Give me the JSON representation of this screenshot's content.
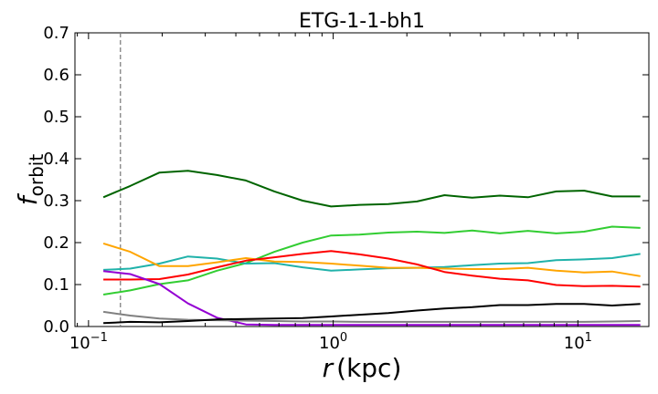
{
  "chart_data": {
    "type": "line",
    "title": "ETG-1-1-bh1",
    "xlabel": {
      "var": "r",
      "unit": "(kpc)"
    },
    "ylabel": {
      "var": "f",
      "sub": "orbit"
    },
    "xscale": "log",
    "xlim": [
      0.088,
      19.5
    ],
    "ylim": [
      0.0,
      0.7
    ],
    "yticks": [
      "0.0",
      "0.1",
      "0.2",
      "0.3",
      "0.4",
      "0.5",
      "0.6",
      "0.7"
    ],
    "xticks": [
      {
        "value": 0.1,
        "base": "10",
        "exp": "−1"
      },
      {
        "value": 1,
        "base": "10",
        "exp": "0"
      },
      {
        "value": 10,
        "base": "10",
        "exp": "1"
      }
    ],
    "grid": false,
    "vline": {
      "x": 0.135,
      "color": "#808080",
      "style": "dashed"
    },
    "x": [
      0.115,
      0.148,
      0.195,
      0.255,
      0.335,
      0.44,
      0.575,
      0.75,
      0.98,
      1.28,
      1.68,
      2.2,
      2.85,
      3.7,
      4.8,
      6.25,
      8.15,
      10.6,
      13.8,
      18.0
    ],
    "series": [
      {
        "color": "#006400",
        "values": [
          0.308,
          0.335,
          0.367,
          0.371,
          0.361,
          0.348,
          0.322,
          0.3,
          0.286,
          0.29,
          0.292,
          0.298,
          0.313,
          0.307,
          0.312,
          0.308,
          0.322,
          0.324,
          0.31,
          0.31
        ]
      },
      {
        "color": "#32cd32",
        "values": [
          0.076,
          0.086,
          0.101,
          0.11,
          0.133,
          0.151,
          0.178,
          0.2,
          0.217,
          0.219,
          0.224,
          0.226,
          0.223,
          0.229,
          0.222,
          0.228,
          0.222,
          0.226,
          0.238,
          0.235
        ]
      },
      {
        "color": "#20b2aa",
        "values": [
          0.135,
          0.138,
          0.15,
          0.167,
          0.162,
          0.15,
          0.151,
          0.141,
          0.133,
          0.136,
          0.139,
          0.14,
          0.142,
          0.146,
          0.15,
          0.151,
          0.158,
          0.16,
          0.163,
          0.173
        ]
      },
      {
        "color": "#ffa500",
        "values": [
          0.198,
          0.178,
          0.144,
          0.144,
          0.153,
          0.163,
          0.155,
          0.154,
          0.15,
          0.145,
          0.14,
          0.14,
          0.138,
          0.137,
          0.137,
          0.14,
          0.133,
          0.129,
          0.131,
          0.12
        ]
      },
      {
        "color": "#ff0000",
        "values": [
          0.112,
          0.112,
          0.113,
          0.124,
          0.141,
          0.157,
          0.165,
          0.173,
          0.18,
          0.172,
          0.162,
          0.148,
          0.13,
          0.121,
          0.114,
          0.11,
          0.099,
          0.096,
          0.097,
          0.095
        ]
      },
      {
        "color": "#9400d3",
        "values": [
          0.132,
          0.125,
          0.101,
          0.055,
          0.021,
          0.005,
          0.004,
          0.004,
          0.004,
          0.004,
          0.004,
          0.004,
          0.004,
          0.004,
          0.004,
          0.004,
          0.004,
          0.004,
          0.004,
          0.004
        ]
      },
      {
        "color": "#808080",
        "values": [
          0.035,
          0.026,
          0.019,
          0.016,
          0.015,
          0.014,
          0.013,
          0.012,
          0.012,
          0.011,
          0.011,
          0.011,
          0.011,
          0.011,
          0.011,
          0.011,
          0.011,
          0.011,
          0.012,
          0.013
        ]
      },
      {
        "color": "#000000",
        "values": [
          0.008,
          0.011,
          0.01,
          0.013,
          0.017,
          0.018,
          0.019,
          0.02,
          0.024,
          0.028,
          0.032,
          0.038,
          0.043,
          0.046,
          0.051,
          0.051,
          0.054,
          0.054,
          0.05,
          0.054
        ]
      }
    ]
  }
}
